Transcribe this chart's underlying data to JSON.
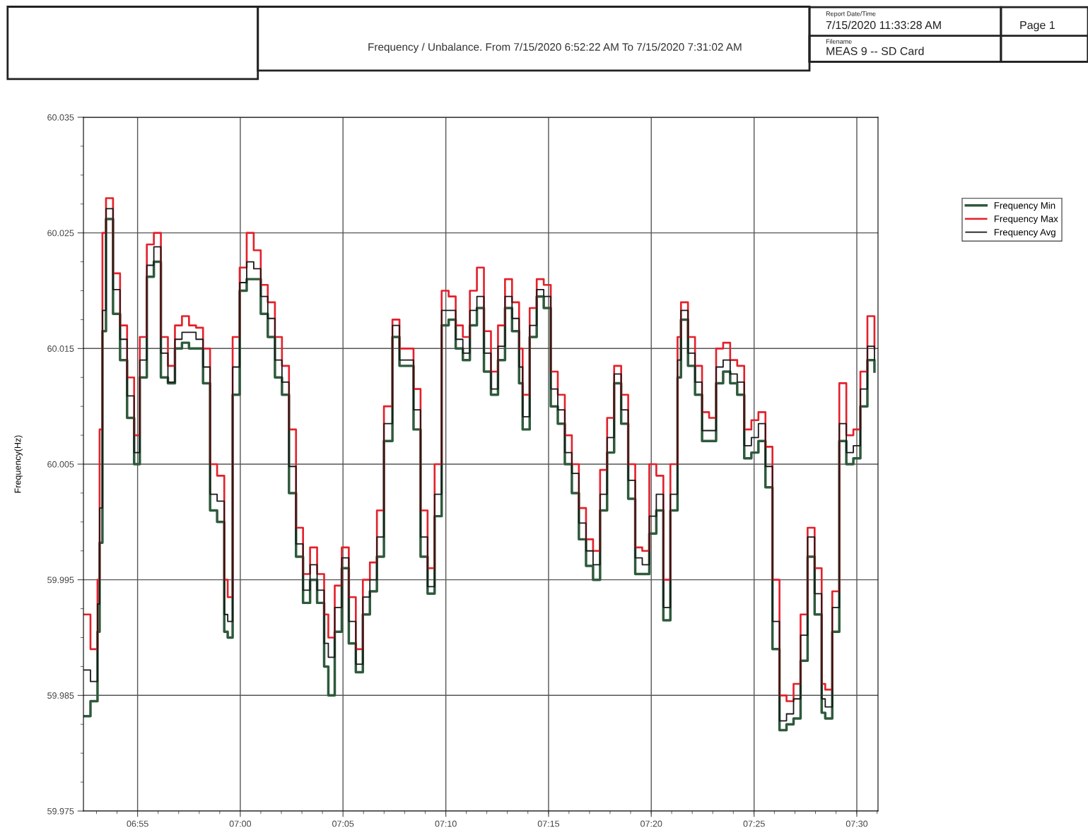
{
  "chart_data": {
    "type": "step",
    "title": "Frequency / Unbalance. From 7/15/2020 6:52:22 AM To 7/15/2020 7:31:02 AM",
    "ylabel": "Frequency(Hz)",
    "annotations": [
      "Report Date/Time",
      "7/15/2020 11:33:28 AM",
      "Page 1",
      "Filename",
      "MEAS 9 -- SD Card"
    ],
    "x": [
      6.8728,
      6.8785,
      6.8842,
      6.8859,
      6.8882,
      6.8911,
      6.8968,
      6.9025,
      6.9082,
      6.9139,
      6.9185,
      6.9242,
      6.9299,
      6.9356,
      6.9413,
      6.947,
      6.9527,
      6.9584,
      6.9641,
      6.9698,
      6.9755,
      6.9812,
      6.987,
      6.9898,
      6.9938,
      6.9995,
      7.0052,
      7.0109,
      7.0166,
      7.0223,
      7.0281,
      7.0338,
      7.0395,
      7.0452,
      7.0509,
      7.0566,
      7.0623,
      7.068,
      7.0714,
      7.0766,
      7.0823,
      7.088,
      7.0937,
      7.0994,
      7.1051,
      7.1108,
      7.1165,
      7.1234,
      7.1291,
      7.1348,
      7.1405,
      7.1462,
      7.1519,
      7.1576,
      7.1633,
      7.169,
      7.1747,
      7.1805,
      7.1862,
      7.1919,
      7.1976,
      7.2033,
      7.209,
      7.2147,
      7.2204,
      7.2261,
      7.229,
      7.2347,
      7.2404,
      7.2461,
      7.2518,
      7.2575,
      7.2632,
      7.2689,
      7.2746,
      7.2804,
      7.2861,
      7.2918,
      7.2975,
      7.3032,
      7.3089,
      7.3146,
      7.3203,
      7.326,
      7.3317,
      7.3374,
      7.3431,
      7.3488,
      7.3546,
      7.3574,
      7.3631,
      7.3688,
      7.3745,
      7.3802,
      7.3859,
      7.3916,
      7.3973,
      7.403,
      7.4087,
      7.4145,
      7.4202,
      7.4259,
      7.4316,
      7.4373,
      7.443,
      7.4487,
      7.4544,
      7.4601,
      7.4658,
      7.4715,
      7.4744,
      7.4801,
      7.4858,
      7.4915,
      7.4972,
      7.5029,
      7.5086,
      7.5143
    ],
    "series": [
      {
        "name": "Frequency Min",
        "color": "#2e5a3c",
        "values": [
          59.9832,
          59.9845,
          59.9905,
          59.9982,
          60.0165,
          60.0262,
          60.018,
          60.014,
          60.009,
          60.005,
          60.0125,
          60.0212,
          60.0225,
          60.0125,
          60.012,
          60.015,
          60.0155,
          60.015,
          60.015,
          60.012,
          60.001,
          60.0,
          59.9905,
          59.99,
          60.011,
          60.02,
          60.021,
          60.021,
          60.018,
          60.016,
          60.0125,
          60.011,
          60.0025,
          59.997,
          59.993,
          59.995,
          59.993,
          59.9875,
          59.985,
          59.9905,
          59.996,
          59.9895,
          59.987,
          59.992,
          59.994,
          59.997,
          60.007,
          60.016,
          60.0135,
          60.0135,
          60.008,
          59.997,
          59.9938,
          60.0005,
          60.017,
          60.0175,
          60.015,
          60.014,
          60.017,
          60.0185,
          60.013,
          60.011,
          60.014,
          60.0185,
          60.0165,
          60.012,
          60.008,
          60.016,
          60.0195,
          60.0185,
          60.01,
          60.0085,
          60.005,
          60.0025,
          59.9985,
          59.9962,
          59.995,
          60.001,
          60.006,
          60.012,
          60.0085,
          60.002,
          59.9955,
          59.9955,
          59.999,
          60.001,
          59.9915,
          60.001,
          60.0125,
          60.0175,
          60.0135,
          60.011,
          60.007,
          60.007,
          60.012,
          60.013,
          60.012,
          60.011,
          60.0055,
          60.006,
          60.007,
          60.003,
          59.989,
          59.982,
          59.9825,
          59.983,
          59.988,
          59.997,
          59.992,
          59.9835,
          59.983,
          59.9905,
          60.007,
          60.005,
          60.0055,
          60.01,
          60.014,
          60.013
        ]
      },
      {
        "name": "Frequency Max",
        "color": "#e3212b",
        "values": [
          59.992,
          59.989,
          59.995,
          60.008,
          60.025,
          60.028,
          60.0215,
          60.017,
          60.0125,
          60.0075,
          60.016,
          60.024,
          60.025,
          60.016,
          60.0135,
          60.017,
          60.0178,
          60.017,
          60.0168,
          60.015,
          60.005,
          60.004,
          59.995,
          59.9935,
          60.016,
          60.022,
          60.025,
          60.0235,
          60.0205,
          60.019,
          60.016,
          60.0135,
          60.008,
          59.9995,
          59.9955,
          59.9978,
          59.9955,
          59.992,
          59.99,
          59.9945,
          59.9978,
          59.9935,
          59.989,
          59.995,
          59.9965,
          60.001,
          60.01,
          60.0175,
          60.015,
          60.015,
          60.0115,
          60.001,
          59.996,
          60.005,
          60.02,
          60.0195,
          60.017,
          60.016,
          60.02,
          60.022,
          60.0165,
          60.013,
          60.017,
          60.021,
          60.019,
          60.015,
          60.011,
          60.0185,
          60.021,
          60.0205,
          60.013,
          60.011,
          60.0075,
          60.005,
          60.0012,
          59.9985,
          59.9975,
          60.0045,
          60.009,
          60.0135,
          60.011,
          60.005,
          59.9978,
          59.9975,
          60.005,
          60.004,
          59.995,
          60.005,
          60.016,
          60.019,
          60.016,
          60.0135,
          60.0095,
          60.009,
          60.015,
          60.0155,
          60.014,
          60.0135,
          60.008,
          60.0088,
          60.0095,
          60.0065,
          59.995,
          59.985,
          59.9845,
          59.986,
          59.992,
          59.9995,
          59.996,
          59.986,
          59.9855,
          59.994,
          60.012,
          60.0075,
          60.008,
          60.013,
          60.0178,
          60.015
        ]
      },
      {
        "name": "Frequency Avg",
        "color": "#1a1a1a",
        "values": [
          59.9872,
          59.9862,
          59.9929,
          60.0012,
          60.0183,
          60.0271,
          60.0201,
          60.0158,
          60.0109,
          60.006,
          60.014,
          60.0222,
          60.0238,
          60.0146,
          60.0121,
          60.0158,
          60.0164,
          60.0164,
          60.0158,
          60.0134,
          60.0024,
          60.0018,
          59.992,
          59.9914,
          60.0134,
          60.0207,
          60.0225,
          60.0219,
          60.0195,
          60.0176,
          60.014,
          60.0121,
          60.0048,
          59.9981,
          59.9941,
          59.9963,
          59.9941,
          59.9895,
          59.9883,
          59.9926,
          59.9969,
          59.9914,
          59.9877,
          59.9935,
          59.995,
          59.9987,
          60.0085,
          60.017,
          60.014,
          60.014,
          60.0097,
          59.9987,
          59.9944,
          60.0024,
          60.0183,
          60.0183,
          60.0158,
          60.0146,
          60.0183,
          60.0195,
          60.0146,
          60.0115,
          60.0152,
          60.0195,
          60.0176,
          60.0134,
          60.0091,
          60.017,
          60.0201,
          60.0195,
          60.0115,
          60.0097,
          60.006,
          60.0042,
          59.9999,
          59.9975,
          59.9963,
          60.0024,
          60.0073,
          60.0128,
          60.0097,
          60.0036,
          59.9969,
          59.9963,
          60.0005,
          60.0024,
          59.9926,
          60.0024,
          60.014,
          60.0183,
          60.0146,
          60.0121,
          60.0079,
          60.0079,
          60.0134,
          60.014,
          60.0128,
          60.0121,
          60.0066,
          60.0073,
          60.0085,
          60.0048,
          59.9914,
          59.9828,
          59.9834,
          59.9847,
          59.9902,
          59.9987,
          59.9938,
          59.9847,
          59.984,
          59.9926,
          60.0085,
          60.006,
          60.0066,
          60.0115,
          60.0152,
          60.014
        ]
      }
    ],
    "xlim": [
      6.8728,
      7.5172
    ],
    "xticks": [
      {
        "value": 6.9167,
        "label": "06:55"
      },
      {
        "value": 7.0,
        "label": "07:00"
      },
      {
        "value": 7.0833,
        "label": "07:05"
      },
      {
        "value": 7.1667,
        "label": "07:10"
      },
      {
        "value": 7.25,
        "label": "07:15"
      },
      {
        "value": 7.3333,
        "label": "07:20"
      },
      {
        "value": 7.4167,
        "label": "07:25"
      },
      {
        "value": 7.5,
        "label": "07:30"
      }
    ],
    "ylim": [
      59.975,
      60.035
    ],
    "yticks": [
      59.975,
      59.985,
      59.995,
      60.005,
      60.015,
      60.025,
      60.035
    ],
    "grid": true,
    "legend": "top right",
    "line_style": "solid",
    "marker": "none"
  }
}
